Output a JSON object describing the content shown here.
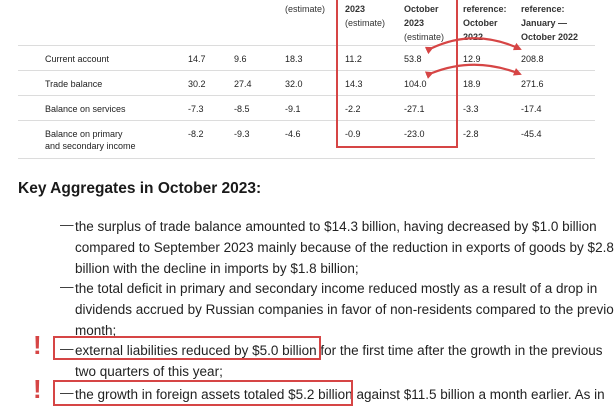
{
  "table": {
    "col_headers": {
      "c3": {
        "lines": [
          "(estimate)"
        ]
      },
      "c4": {
        "lines": [
          "2023",
          "(estimate)"
        ]
      },
      "c5": {
        "lines": [
          "October",
          "2023",
          "(estimate)"
        ]
      },
      "c6": {
        "lines": [
          "reference:",
          "October",
          "2022"
        ]
      },
      "c7": {
        "lines": [
          "reference:",
          "January —",
          "October 2022"
        ]
      }
    },
    "rows": [
      {
        "label": "Current account",
        "label2": "",
        "values": [
          "14.7",
          "9.6",
          "18.3",
          "11.2",
          "53.8",
          "12.9",
          "208.8"
        ]
      },
      {
        "label": "Trade balance",
        "label2": "",
        "values": [
          "30.2",
          "27.4",
          "32.0",
          "14.3",
          "104.0",
          "18.9",
          "271.6"
        ]
      },
      {
        "label": "Balance on services",
        "label2": "",
        "values": [
          "-7.3",
          "-8.5",
          "-9.1",
          "-2.2",
          "-27.1",
          "-3.3",
          "-17.4"
        ]
      },
      {
        "label": "Balance on primary",
        "label2": "and secondary income",
        "values": [
          "-8.2",
          "-9.3",
          "-4.6",
          "-0.9",
          "-23.0",
          "-2.8",
          "-45.4"
        ]
      }
    ]
  },
  "section": {
    "heading": "Key Aggregates in October 2023:",
    "dash": "—",
    "bullets": [
      {
        "lines": [
          "the surplus of trade balance amounted to $14.3 billion, having decreased by $1.0 billion",
          "compared to September 2023 mainly because of the reduction in exports of goods by $2.8",
          "billion with the decline in imports by $1.8 billion;"
        ]
      },
      {
        "lines": [
          "the total deficit in primary and secondary income reduced mostly as a result of a drop in",
          "dividends accrued by Russian companies in favor of non-residents compared to the previo",
          "month;"
        ]
      },
      {
        "highlight": "external liabilities reduced by $5.0 billion",
        "rest": " for the first time after the growth in the previous",
        "lines": [
          "two quarters of this year;"
        ]
      },
      {
        "highlight": "the growth in foreign assets totaled $5.2 billion",
        "rest": " against $11.5 billion a month earlier. As in"
      }
    ],
    "exclamation": "!"
  },
  "colors": {
    "annotation_red": "#d64545"
  }
}
